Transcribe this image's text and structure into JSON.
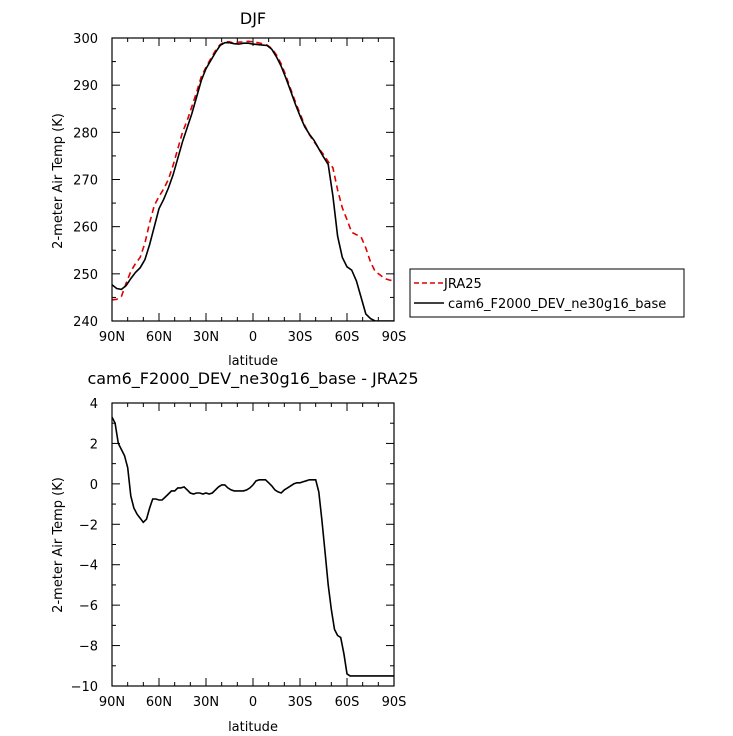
{
  "chart_data": [
    {
      "type": "line",
      "title": "DJF",
      "xlabel": "latitude",
      "ylabel": "2-meter Air Temp (K)",
      "xlim": [
        90,
        -90
      ],
      "ylim": [
        240,
        300
      ],
      "x_ticks": [
        90,
        60,
        30,
        0,
        -30,
        -60,
        -90
      ],
      "x_tick_labels": [
        "90N",
        "60N",
        "30N",
        "0",
        "30S",
        "60S",
        "90S"
      ],
      "y_ticks": [
        240,
        250,
        260,
        270,
        280,
        290,
        300
      ],
      "y_tick_labels": [
        "240",
        "250",
        "260",
        "270",
        "280",
        "290",
        "300"
      ],
      "grid": false,
      "legend_position": "right",
      "series": [
        {
          "name": "JRA25",
          "color": "#e00000",
          "style": "dashed",
          "x": [
            90,
            87,
            84,
            81,
            78,
            75,
            72,
            69,
            66,
            63,
            60,
            57,
            54,
            51,
            48,
            45,
            42,
            39,
            36,
            33,
            30,
            27,
            24,
            21,
            18,
            15,
            12,
            9,
            6,
            3,
            0,
            -3,
            -6,
            -9,
            -12,
            -15,
            -18,
            -21,
            -24,
            -27,
            -30,
            -33,
            -36,
            -39,
            -42,
            -45,
            -48,
            -51,
            -54,
            -57,
            -60,
            -63,
            -66,
            -69,
            -72,
            -75,
            -78,
            -81,
            -84,
            -87,
            -90
          ],
          "y": [
            244.5,
            244.6,
            245.2,
            248.0,
            250.5,
            252.2,
            253.5,
            256.5,
            260.8,
            264.5,
            266.4,
            268.0,
            270.0,
            273.0,
            276.5,
            280.0,
            282.5,
            285.5,
            288.5,
            291.8,
            293.8,
            295.6,
            297.3,
            298.6,
            299.2,
            299.2,
            298.9,
            299.1,
            299.2,
            299.3,
            299.2,
            299.0,
            298.8,
            298.5,
            297.8,
            296.4,
            294.5,
            292.0,
            289.2,
            286.5,
            284.0,
            281.5,
            279.5,
            278.0,
            276.6,
            275.3,
            273.8,
            272.5,
            267.8,
            264.0,
            261.5,
            258.8,
            258.3,
            257.8,
            255.5,
            252.5,
            250.5,
            249.8,
            249.0,
            248.7,
            248.5
          ],
          "name_visible": true
        },
        {
          "name": "cam6_F2000_DEV_ne30g16_base",
          "color": "#000000",
          "style": "solid",
          "x": [
            90,
            87,
            84,
            81,
            78,
            75,
            72,
            69,
            66,
            63,
            60,
            57,
            54,
            51,
            48,
            45,
            42,
            39,
            36,
            33,
            30,
            27,
            24,
            21,
            18,
            15,
            12,
            9,
            6,
            3,
            0,
            -3,
            -6,
            -9,
            -12,
            -15,
            -18,
            -21,
            -24,
            -27,
            -30,
            -33,
            -36,
            -39,
            -42,
            -45,
            -48,
            -51,
            -54,
            -57,
            -60,
            -63,
            -66,
            -69,
            -72,
            -75,
            -78,
            -81,
            -84,
            -87,
            -90
          ],
          "y": [
            247.7,
            246.9,
            246.7,
            247.5,
            249.0,
            250.3,
            251.3,
            253.0,
            256.2,
            260.0,
            263.8,
            265.8,
            268.2,
            271.0,
            274.5,
            278.0,
            281.0,
            284.0,
            287.5,
            291.0,
            293.5,
            295.2,
            296.9,
            298.4,
            299.0,
            299.0,
            298.8,
            298.7,
            298.9,
            298.9,
            298.7,
            298.6,
            298.5,
            298.4,
            297.6,
            296.0,
            294.0,
            291.5,
            288.8,
            286.0,
            283.5,
            281.2,
            279.6,
            278.3,
            276.5,
            274.8,
            273.2,
            266.5,
            258.0,
            253.5,
            251.5,
            250.8,
            248.5,
            245.0,
            241.5,
            240.5,
            240.0,
            240.0,
            240.0,
            240.0,
            240.0
          ]
        }
      ],
      "legend": [
        "JRA25",
        "cam6_F2000_DEV_ne30g16_base"
      ]
    },
    {
      "type": "line",
      "title": "cam6_F2000_DEV_ne30g16_base - JRA25",
      "xlabel": "latitude",
      "ylabel": "2-meter Air Temp (K)",
      "xlim": [
        90,
        -90
      ],
      "ylim": [
        -10,
        4
      ],
      "x_ticks": [
        90,
        60,
        30,
        0,
        -30,
        -60,
        -90
      ],
      "x_tick_labels": [
        "90N",
        "60N",
        "30N",
        "0",
        "30S",
        "60S",
        "90S"
      ],
      "y_ticks": [
        -10,
        -8,
        -6,
        -4,
        -2,
        0,
        2,
        4
      ],
      "y_tick_labels": [
        "−10",
        "−8",
        "−6",
        "−4",
        "−2",
        "0",
        "2",
        "4"
      ],
      "grid": false,
      "series": [
        {
          "color": "#000000",
          "style": "solid",
          "x": [
            90,
            88,
            86,
            84,
            82,
            80,
            78,
            76,
            74,
            72,
            70,
            68,
            66,
            64,
            62,
            60,
            58,
            56,
            54,
            52,
            50,
            48,
            46,
            44,
            42,
            40,
            38,
            36,
            34,
            32,
            30,
            28,
            26,
            24,
            22,
            20,
            18,
            16,
            14,
            12,
            10,
            8,
            6,
            4,
            2,
            0,
            -2,
            -4,
            -6,
            -8,
            -10,
            -12,
            -14,
            -16,
            -18,
            -20,
            -22,
            -24,
            -26,
            -28,
            -30,
            -32,
            -34,
            -36,
            -38,
            -40,
            -42,
            -44,
            -46,
            -48,
            -50,
            -52,
            -54,
            -56,
            -58,
            -60,
            -62,
            -64,
            -66,
            -68,
            -70,
            -72,
            -74,
            -76,
            -78,
            -80,
            -82,
            -84,
            -86,
            -88,
            -90
          ],
          "y": [
            3.3,
            3.0,
            2.0,
            1.7,
            1.4,
            0.8,
            -0.6,
            -1.2,
            -1.5,
            -1.7,
            -1.9,
            -1.75,
            -1.2,
            -0.75,
            -0.75,
            -0.8,
            -0.8,
            -0.65,
            -0.5,
            -0.35,
            -0.35,
            -0.2,
            -0.2,
            -0.15,
            -0.3,
            -0.45,
            -0.5,
            -0.45,
            -0.45,
            -0.5,
            -0.45,
            -0.5,
            -0.45,
            -0.3,
            -0.15,
            -0.05,
            -0.05,
            -0.2,
            -0.3,
            -0.35,
            -0.35,
            -0.35,
            -0.35,
            -0.3,
            -0.2,
            -0.05,
            0.15,
            0.2,
            0.2,
            0.2,
            0.05,
            -0.1,
            -0.3,
            -0.4,
            -0.45,
            -0.3,
            -0.2,
            -0.1,
            0.0,
            0.05,
            0.05,
            0.1,
            0.15,
            0.2,
            0.2,
            0.2,
            -0.4,
            -1.8,
            -3.4,
            -5.0,
            -6.2,
            -7.2,
            -7.5,
            -7.6,
            -8.4,
            -9.4,
            -9.5,
            -9.5,
            -9.5,
            -9.5,
            -9.5,
            -9.5,
            -9.5,
            -9.5,
            -9.5,
            -9.5,
            -9.5,
            -9.5,
            -9.5,
            -9.5,
            -9.5
          ]
        }
      ]
    }
  ]
}
